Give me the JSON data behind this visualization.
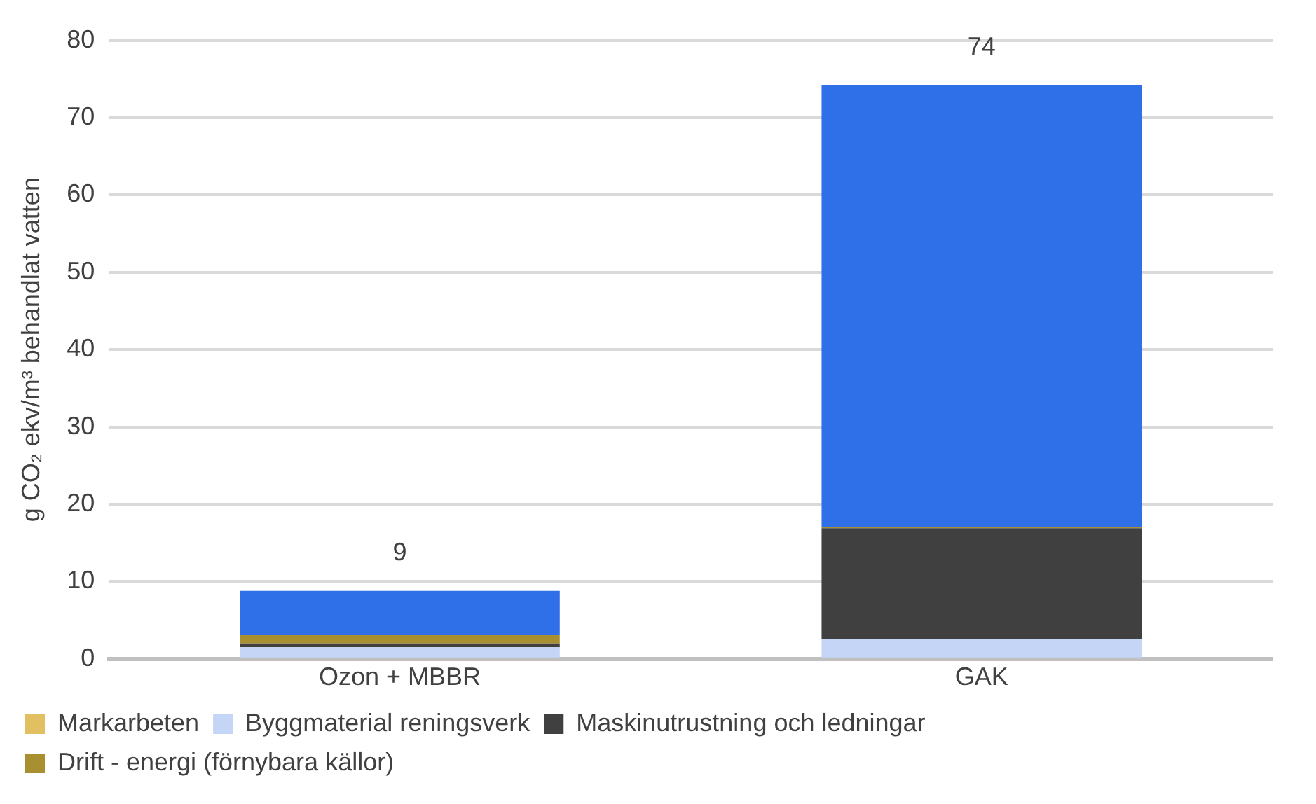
{
  "chart_data": {
    "type": "bar",
    "stacked": true,
    "ylabel": "g CO₂ ekv/m³ behandlat vatten",
    "categories": [
      "Ozon + MBBR",
      "GAK"
    ],
    "series": [
      {
        "name": "Markarbeten",
        "color": "#e0c060",
        "values": [
          0,
          0
        ]
      },
      {
        "name": "Byggmaterial reningsverk",
        "color": "#c5d5f5",
        "values": [
          1.5,
          2.6
        ]
      },
      {
        "name": "Maskinutrustning och ledningar",
        "color": "#404040",
        "values": [
          0.5,
          14.3
        ]
      },
      {
        "name": "Drift - energi (förnybara källor)",
        "color": "#a89030",
        "values": [
          1.1,
          0.2
        ]
      },
      {
        "color": "#2f6fe8",
        "values": [
          5.7,
          57.1
        ]
      }
    ],
    "totals": [
      "9",
      "74"
    ],
    "ylim": [
      0,
      80
    ],
    "yticks": [
      0,
      10,
      20,
      30,
      40,
      50,
      60,
      70,
      80
    ],
    "grid": "y",
    "legend": "bottom"
  }
}
